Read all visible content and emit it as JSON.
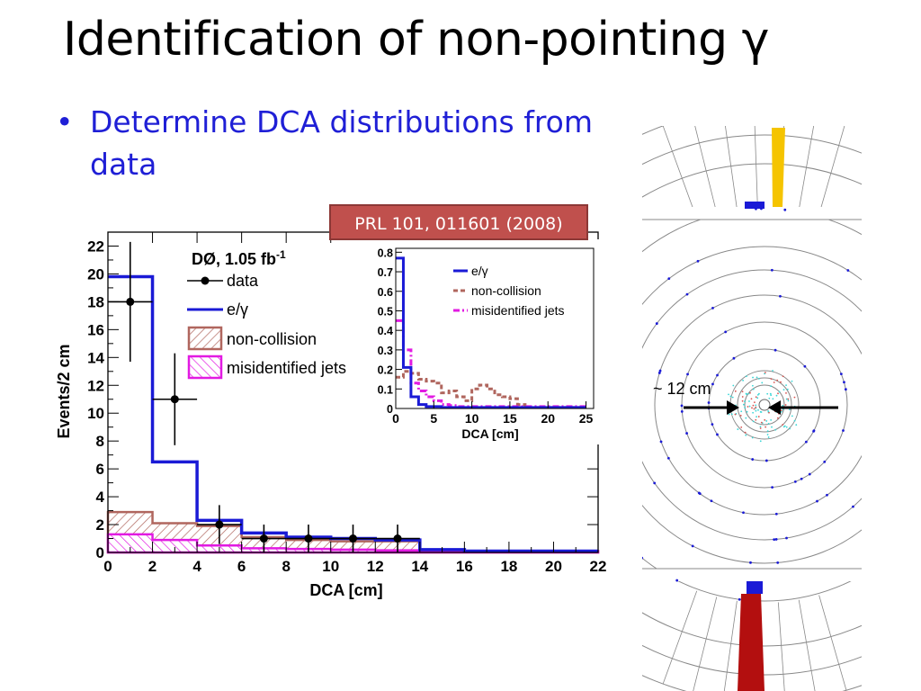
{
  "slide": {
    "title": "Identification of non-pointing γ",
    "bullet": "Determine DCA distributions from data",
    "reference": "PRL 101, 011601 (2008)"
  },
  "chart_data": [
    {
      "type": "bar",
      "subtype": "step-histogram",
      "title": "",
      "xlabel": "DCA [cm]",
      "ylabel": "Events/2 cm",
      "xlim": [
        0,
        22
      ],
      "ylim": [
        0,
        23
      ],
      "x_ticks": [
        0,
        2,
        4,
        6,
        8,
        10,
        12,
        14,
        16,
        18,
        20,
        22
      ],
      "y_ticks": [
        0,
        2,
        4,
        6,
        8,
        10,
        12,
        14,
        16,
        18,
        20,
        22
      ],
      "experiment_label": "DØ, 1.05 fb",
      "experiment_label_sup": "-1",
      "legend_position": "top-center",
      "legend": [
        {
          "label": "data",
          "style": "marker",
          "color": "#000000"
        },
        {
          "label": "e/γ",
          "style": "line",
          "color": "#1a1ad6"
        },
        {
          "label": "non-collision",
          "style": "hatched-fill",
          "color": "#b0665e"
        },
        {
          "label": "misidentified jets",
          "style": "hatched-fill",
          "color": "#e21ae2"
        }
      ],
      "bin_edges": [
        0,
        2,
        4,
        6,
        8,
        10,
        12,
        14,
        16,
        18,
        20,
        22
      ],
      "series": [
        {
          "name": "e/γ",
          "values": [
            19.8,
            6.5,
            2.3,
            1.4,
            1.1,
            1.0,
            0.9,
            0.2,
            0.1,
            0.1,
            0.1
          ]
        },
        {
          "name": "non-collision",
          "values": [
            2.9,
            2.1,
            1.9,
            1.1,
            0.9,
            0.8,
            0.8,
            0.2,
            0.1,
            0.1,
            0.1
          ]
        },
        {
          "name": "misidentified jets",
          "values": [
            1.3,
            0.9,
            0.5,
            0.3,
            0.25,
            0.2,
            0.15,
            0.1,
            0.1,
            0.1,
            0.1
          ]
        }
      ],
      "data_points": [
        {
          "x": 1,
          "y": 18,
          "yerr": 4.3
        },
        {
          "x": 3,
          "y": 11,
          "yerr": 3.3
        },
        {
          "x": 5,
          "y": 2,
          "yerr": 1.4
        },
        {
          "x": 7,
          "y": 1,
          "yerr": 1.0
        },
        {
          "x": 9,
          "y": 1,
          "yerr": 1.0
        },
        {
          "x": 11,
          "y": 1,
          "yerr": 1.0
        },
        {
          "x": 13,
          "y": 1,
          "yerr": 1.0
        }
      ]
    },
    {
      "type": "line",
      "subtype": "step-histogram-inset",
      "xlabel": "DCA [cm]",
      "ylabel": "",
      "xlim": [
        0,
        26
      ],
      "ylim": [
        0,
        0.82
      ],
      "x_ticks": [
        0,
        5,
        10,
        15,
        20,
        25
      ],
      "y_ticks": [
        0,
        0.1,
        0.2,
        0.3,
        0.4,
        0.5,
        0.6,
        0.7,
        0.8
      ],
      "legend_position": "top-right",
      "legend": [
        {
          "label": "e/γ",
          "style": "solid",
          "color": "#1a1ad6"
        },
        {
          "label": "non-collision",
          "style": "dashed",
          "color": "#b0665e"
        },
        {
          "label": "misidentified jets",
          "style": "dashdot",
          "color": "#e21ae2"
        }
      ],
      "bin_width": 1,
      "series": [
        {
          "name": "e/γ",
          "values": [
            0.77,
            0.21,
            0.06,
            0.02,
            0.01,
            0.01,
            0.005,
            0.005,
            0.005,
            0.005,
            0.005,
            0.005,
            0.005,
            0.005,
            0.005,
            0.005,
            0.005,
            0.005,
            0.005,
            0.005,
            0.005,
            0.005,
            0.005,
            0.005,
            0.005
          ]
        },
        {
          "name": "non-collision",
          "values": [
            0.16,
            0.19,
            0.18,
            0.15,
            0.14,
            0.13,
            0.08,
            0.09,
            0.06,
            0.04,
            0.1,
            0.12,
            0.1,
            0.07,
            0.06,
            0.05,
            0.02,
            0.005,
            0.005,
            0.005,
            0.005,
            0.005,
            0.005,
            0.005,
            0.005
          ]
        },
        {
          "name": "misidentified jets",
          "values": [
            0.45,
            0.3,
            0.13,
            0.09,
            0.06,
            0.04,
            0.02,
            0.015,
            0.01,
            0.01,
            0.01,
            0.01,
            0.01,
            0.01,
            0.01,
            0.01,
            0.01,
            0.01,
            0.01,
            0.01,
            0.01,
            0.01,
            0.01,
            0.01,
            0.01
          ]
        }
      ]
    }
  ],
  "detector": {
    "scale_label": "~ 12 cm",
    "bar_colors": {
      "top": "#f5c400",
      "bottom": "#b30f0f",
      "blue": "#1a1ad6",
      "cyan": "#38d6d6"
    }
  }
}
